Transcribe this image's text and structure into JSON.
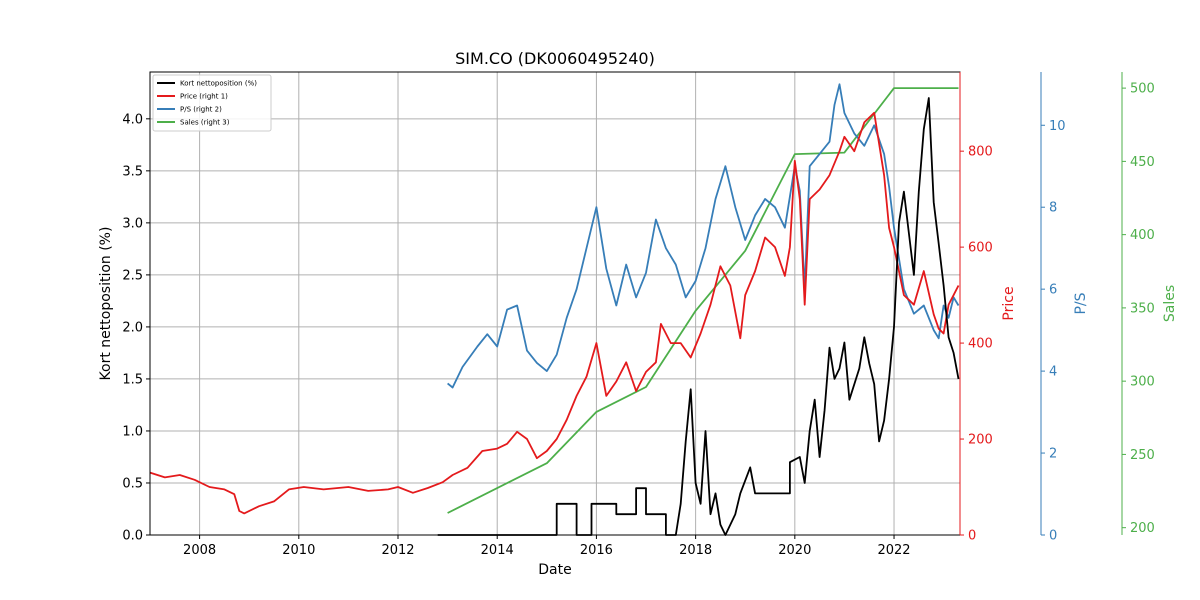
{
  "chart_data": {
    "type": "line",
    "title": "SIM.CO (DK0060495240)",
    "xlabel": "Date",
    "ylabel": "Kort nettoposition (%)",
    "x_ticks": [
      "2008",
      "2010",
      "2012",
      "2014",
      "2016",
      "2018",
      "2020",
      "2022"
    ],
    "grid": true,
    "legend_placement": "top-left",
    "axes": {
      "left": {
        "label": "Kort nettoposition (%)",
        "range": [
          0,
          4.45
        ],
        "ticks": [
          "0.0",
          "0.5",
          "1.0",
          "1.5",
          "2.0",
          "2.5",
          "3.0",
          "3.5",
          "4.0"
        ],
        "color": "#000000"
      },
      "right1": {
        "label": "Price",
        "range": [
          0,
          965
        ],
        "ticks": [
          "0",
          "200",
          "400",
          "600",
          "800"
        ],
        "color": "#e41a1c"
      },
      "right2": {
        "label": "P/S",
        "range": [
          0,
          11.3
        ],
        "ticks": [
          "0",
          "2",
          "4",
          "6",
          "8",
          "10"
        ],
        "color": "#377eb8"
      },
      "right3": {
        "label": "Sales",
        "range": [
          195,
          511
        ],
        "ticks": [
          "200",
          "250",
          "300",
          "350",
          "400",
          "450",
          "500"
        ],
        "color": "#4daf4a"
      }
    },
    "series": [
      {
        "name": "Kort nettoposition (%)",
        "axis": "left",
        "color": "#000000",
        "points": [
          [
            2012.8,
            0
          ],
          [
            2015.2,
            0
          ],
          [
            2015.2,
            0.3
          ],
          [
            2015.6,
            0.3
          ],
          [
            2015.6,
            0
          ],
          [
            2015.9,
            0
          ],
          [
            2015.9,
            0.3
          ],
          [
            2016.4,
            0.3
          ],
          [
            2016.4,
            0.2
          ],
          [
            2016.8,
            0.2
          ],
          [
            2016.8,
            0.45
          ],
          [
            2017.0,
            0.45
          ],
          [
            2017.0,
            0.2
          ],
          [
            2017.4,
            0.2
          ],
          [
            2017.4,
            0
          ],
          [
            2017.6,
            0
          ],
          [
            2017.7,
            0.3
          ],
          [
            2017.8,
            0.9
          ],
          [
            2017.9,
            1.4
          ],
          [
            2018.0,
            0.5
          ],
          [
            2018.1,
            0.3
          ],
          [
            2018.2,
            1.0
          ],
          [
            2018.3,
            0.2
          ],
          [
            2018.4,
            0.4
          ],
          [
            2018.5,
            0.1
          ],
          [
            2018.6,
            0
          ],
          [
            2018.8,
            0.2
          ],
          [
            2018.9,
            0.4
          ],
          [
            2019.1,
            0.65
          ],
          [
            2019.2,
            0.4
          ],
          [
            2019.5,
            0.4
          ],
          [
            2019.9,
            0.4
          ],
          [
            2019.9,
            0.7
          ],
          [
            2020.1,
            0.75
          ],
          [
            2020.2,
            0.5
          ],
          [
            2020.3,
            1.0
          ],
          [
            2020.4,
            1.3
          ],
          [
            2020.5,
            0.75
          ],
          [
            2020.6,
            1.2
          ],
          [
            2020.7,
            1.8
          ],
          [
            2020.8,
            1.5
          ],
          [
            2020.9,
            1.6
          ],
          [
            2021.0,
            1.85
          ],
          [
            2021.1,
            1.3
          ],
          [
            2021.3,
            1.6
          ],
          [
            2021.4,
            1.9
          ],
          [
            2021.5,
            1.65
          ],
          [
            2021.6,
            1.45
          ],
          [
            2021.7,
            0.9
          ],
          [
            2021.8,
            1.1
          ],
          [
            2021.9,
            1.5
          ],
          [
            2022.0,
            2.0
          ],
          [
            2022.1,
            3.0
          ],
          [
            2022.2,
            3.3
          ],
          [
            2022.3,
            2.9
          ],
          [
            2022.4,
            2.5
          ],
          [
            2022.5,
            3.3
          ],
          [
            2022.6,
            3.9
          ],
          [
            2022.7,
            4.2
          ],
          [
            2022.8,
            3.2
          ],
          [
            2022.9,
            2.8
          ],
          [
            2023.0,
            2.4
          ],
          [
            2023.1,
            1.9
          ],
          [
            2023.2,
            1.75
          ],
          [
            2023.3,
            1.5
          ]
        ]
      },
      {
        "name": "Price (right 1)",
        "axis": "right1",
        "color": "#e41a1c",
        "points": [
          [
            2007.0,
            130
          ],
          [
            2007.3,
            120
          ],
          [
            2007.6,
            125
          ],
          [
            2007.9,
            115
          ],
          [
            2008.2,
            100
          ],
          [
            2008.5,
            95
          ],
          [
            2008.7,
            85
          ],
          [
            2008.8,
            50
          ],
          [
            2008.9,
            45
          ],
          [
            2009.2,
            60
          ],
          [
            2009.5,
            70
          ],
          [
            2009.8,
            95
          ],
          [
            2010.1,
            100
          ],
          [
            2010.5,
            95
          ],
          [
            2011.0,
            100
          ],
          [
            2011.4,
            92
          ],
          [
            2011.8,
            95
          ],
          [
            2012.0,
            100
          ],
          [
            2012.3,
            88
          ],
          [
            2012.6,
            98
          ],
          [
            2012.9,
            110
          ],
          [
            2013.1,
            125
          ],
          [
            2013.4,
            140
          ],
          [
            2013.7,
            175
          ],
          [
            2014.0,
            180
          ],
          [
            2014.2,
            190
          ],
          [
            2014.4,
            215
          ],
          [
            2014.6,
            200
          ],
          [
            2014.8,
            160
          ],
          [
            2015.0,
            175
          ],
          [
            2015.2,
            200
          ],
          [
            2015.4,
            240
          ],
          [
            2015.6,
            290
          ],
          [
            2015.8,
            330
          ],
          [
            2016.0,
            400
          ],
          [
            2016.2,
            290
          ],
          [
            2016.4,
            320
          ],
          [
            2016.6,
            360
          ],
          [
            2016.8,
            300
          ],
          [
            2017.0,
            340
          ],
          [
            2017.2,
            360
          ],
          [
            2017.3,
            440
          ],
          [
            2017.5,
            400
          ],
          [
            2017.7,
            400
          ],
          [
            2017.9,
            370
          ],
          [
            2018.1,
            420
          ],
          [
            2018.3,
            480
          ],
          [
            2018.5,
            560
          ],
          [
            2018.7,
            520
          ],
          [
            2018.9,
            410
          ],
          [
            2019.0,
            500
          ],
          [
            2019.2,
            550
          ],
          [
            2019.4,
            620
          ],
          [
            2019.6,
            600
          ],
          [
            2019.8,
            540
          ],
          [
            2019.9,
            600
          ],
          [
            2020.0,
            780
          ],
          [
            2020.1,
            700
          ],
          [
            2020.2,
            480
          ],
          [
            2020.3,
            700
          ],
          [
            2020.5,
            720
          ],
          [
            2020.7,
            750
          ],
          [
            2020.9,
            800
          ],
          [
            2021.0,
            830
          ],
          [
            2021.2,
            800
          ],
          [
            2021.4,
            860
          ],
          [
            2021.6,
            880
          ],
          [
            2021.8,
            750
          ],
          [
            2021.9,
            640
          ],
          [
            2022.0,
            600
          ],
          [
            2022.2,
            500
          ],
          [
            2022.4,
            480
          ],
          [
            2022.6,
            550
          ],
          [
            2022.8,
            460
          ],
          [
            2022.9,
            430
          ],
          [
            2023.0,
            420
          ],
          [
            2023.1,
            480
          ],
          [
            2023.2,
            500
          ],
          [
            2023.3,
            520
          ]
        ]
      },
      {
        "name": "P/S (right 2)",
        "axis": "right2",
        "color": "#377eb8",
        "points": [
          [
            2013.0,
            3.7
          ],
          [
            2013.1,
            3.6
          ],
          [
            2013.3,
            4.1
          ],
          [
            2013.6,
            4.6
          ],
          [
            2013.8,
            4.9
          ],
          [
            2014.0,
            4.6
          ],
          [
            2014.2,
            5.5
          ],
          [
            2014.4,
            5.6
          ],
          [
            2014.6,
            4.5
          ],
          [
            2014.8,
            4.2
          ],
          [
            2015.0,
            4.0
          ],
          [
            2015.2,
            4.4
          ],
          [
            2015.4,
            5.3
          ],
          [
            2015.6,
            6.0
          ],
          [
            2015.8,
            7.0
          ],
          [
            2016.0,
            8.0
          ],
          [
            2016.2,
            6.5
          ],
          [
            2016.4,
            5.6
          ],
          [
            2016.6,
            6.6
          ],
          [
            2016.8,
            5.8
          ],
          [
            2017.0,
            6.4
          ],
          [
            2017.2,
            7.7
          ],
          [
            2017.4,
            7.0
          ],
          [
            2017.6,
            6.6
          ],
          [
            2017.8,
            5.8
          ],
          [
            2018.0,
            6.2
          ],
          [
            2018.2,
            7.0
          ],
          [
            2018.4,
            8.2
          ],
          [
            2018.6,
            9.0
          ],
          [
            2018.8,
            8.0
          ],
          [
            2019.0,
            7.2
          ],
          [
            2019.2,
            7.8
          ],
          [
            2019.4,
            8.2
          ],
          [
            2019.6,
            8.0
          ],
          [
            2019.8,
            7.5
          ],
          [
            2020.0,
            9.0
          ],
          [
            2020.1,
            8.4
          ],
          [
            2020.2,
            6.0
          ],
          [
            2020.3,
            9.0
          ],
          [
            2020.5,
            9.3
          ],
          [
            2020.7,
            9.6
          ],
          [
            2020.8,
            10.5
          ],
          [
            2020.9,
            11.0
          ],
          [
            2021.0,
            10.3
          ],
          [
            2021.2,
            9.8
          ],
          [
            2021.4,
            9.5
          ],
          [
            2021.6,
            10.0
          ],
          [
            2021.8,
            9.3
          ],
          [
            2021.9,
            8.5
          ],
          [
            2022.0,
            7.5
          ],
          [
            2022.2,
            6.0
          ],
          [
            2022.4,
            5.4
          ],
          [
            2022.6,
            5.6
          ],
          [
            2022.8,
            5.0
          ],
          [
            2022.9,
            4.8
          ],
          [
            2023.0,
            5.6
          ],
          [
            2023.1,
            5.3
          ],
          [
            2023.2,
            5.8
          ],
          [
            2023.3,
            5.6
          ]
        ]
      },
      {
        "name": "Sales (right 3)",
        "axis": "right3",
        "color": "#4daf4a",
        "points": [
          [
            2013.0,
            210
          ],
          [
            2015.0,
            244
          ],
          [
            2016.0,
            279
          ],
          [
            2017.0,
            296
          ],
          [
            2018.0,
            348
          ],
          [
            2019.0,
            389
          ],
          [
            2020.0,
            455
          ],
          [
            2021.0,
            456
          ],
          [
            2022.0,
            500
          ],
          [
            2023.3,
            500
          ]
        ]
      }
    ]
  }
}
